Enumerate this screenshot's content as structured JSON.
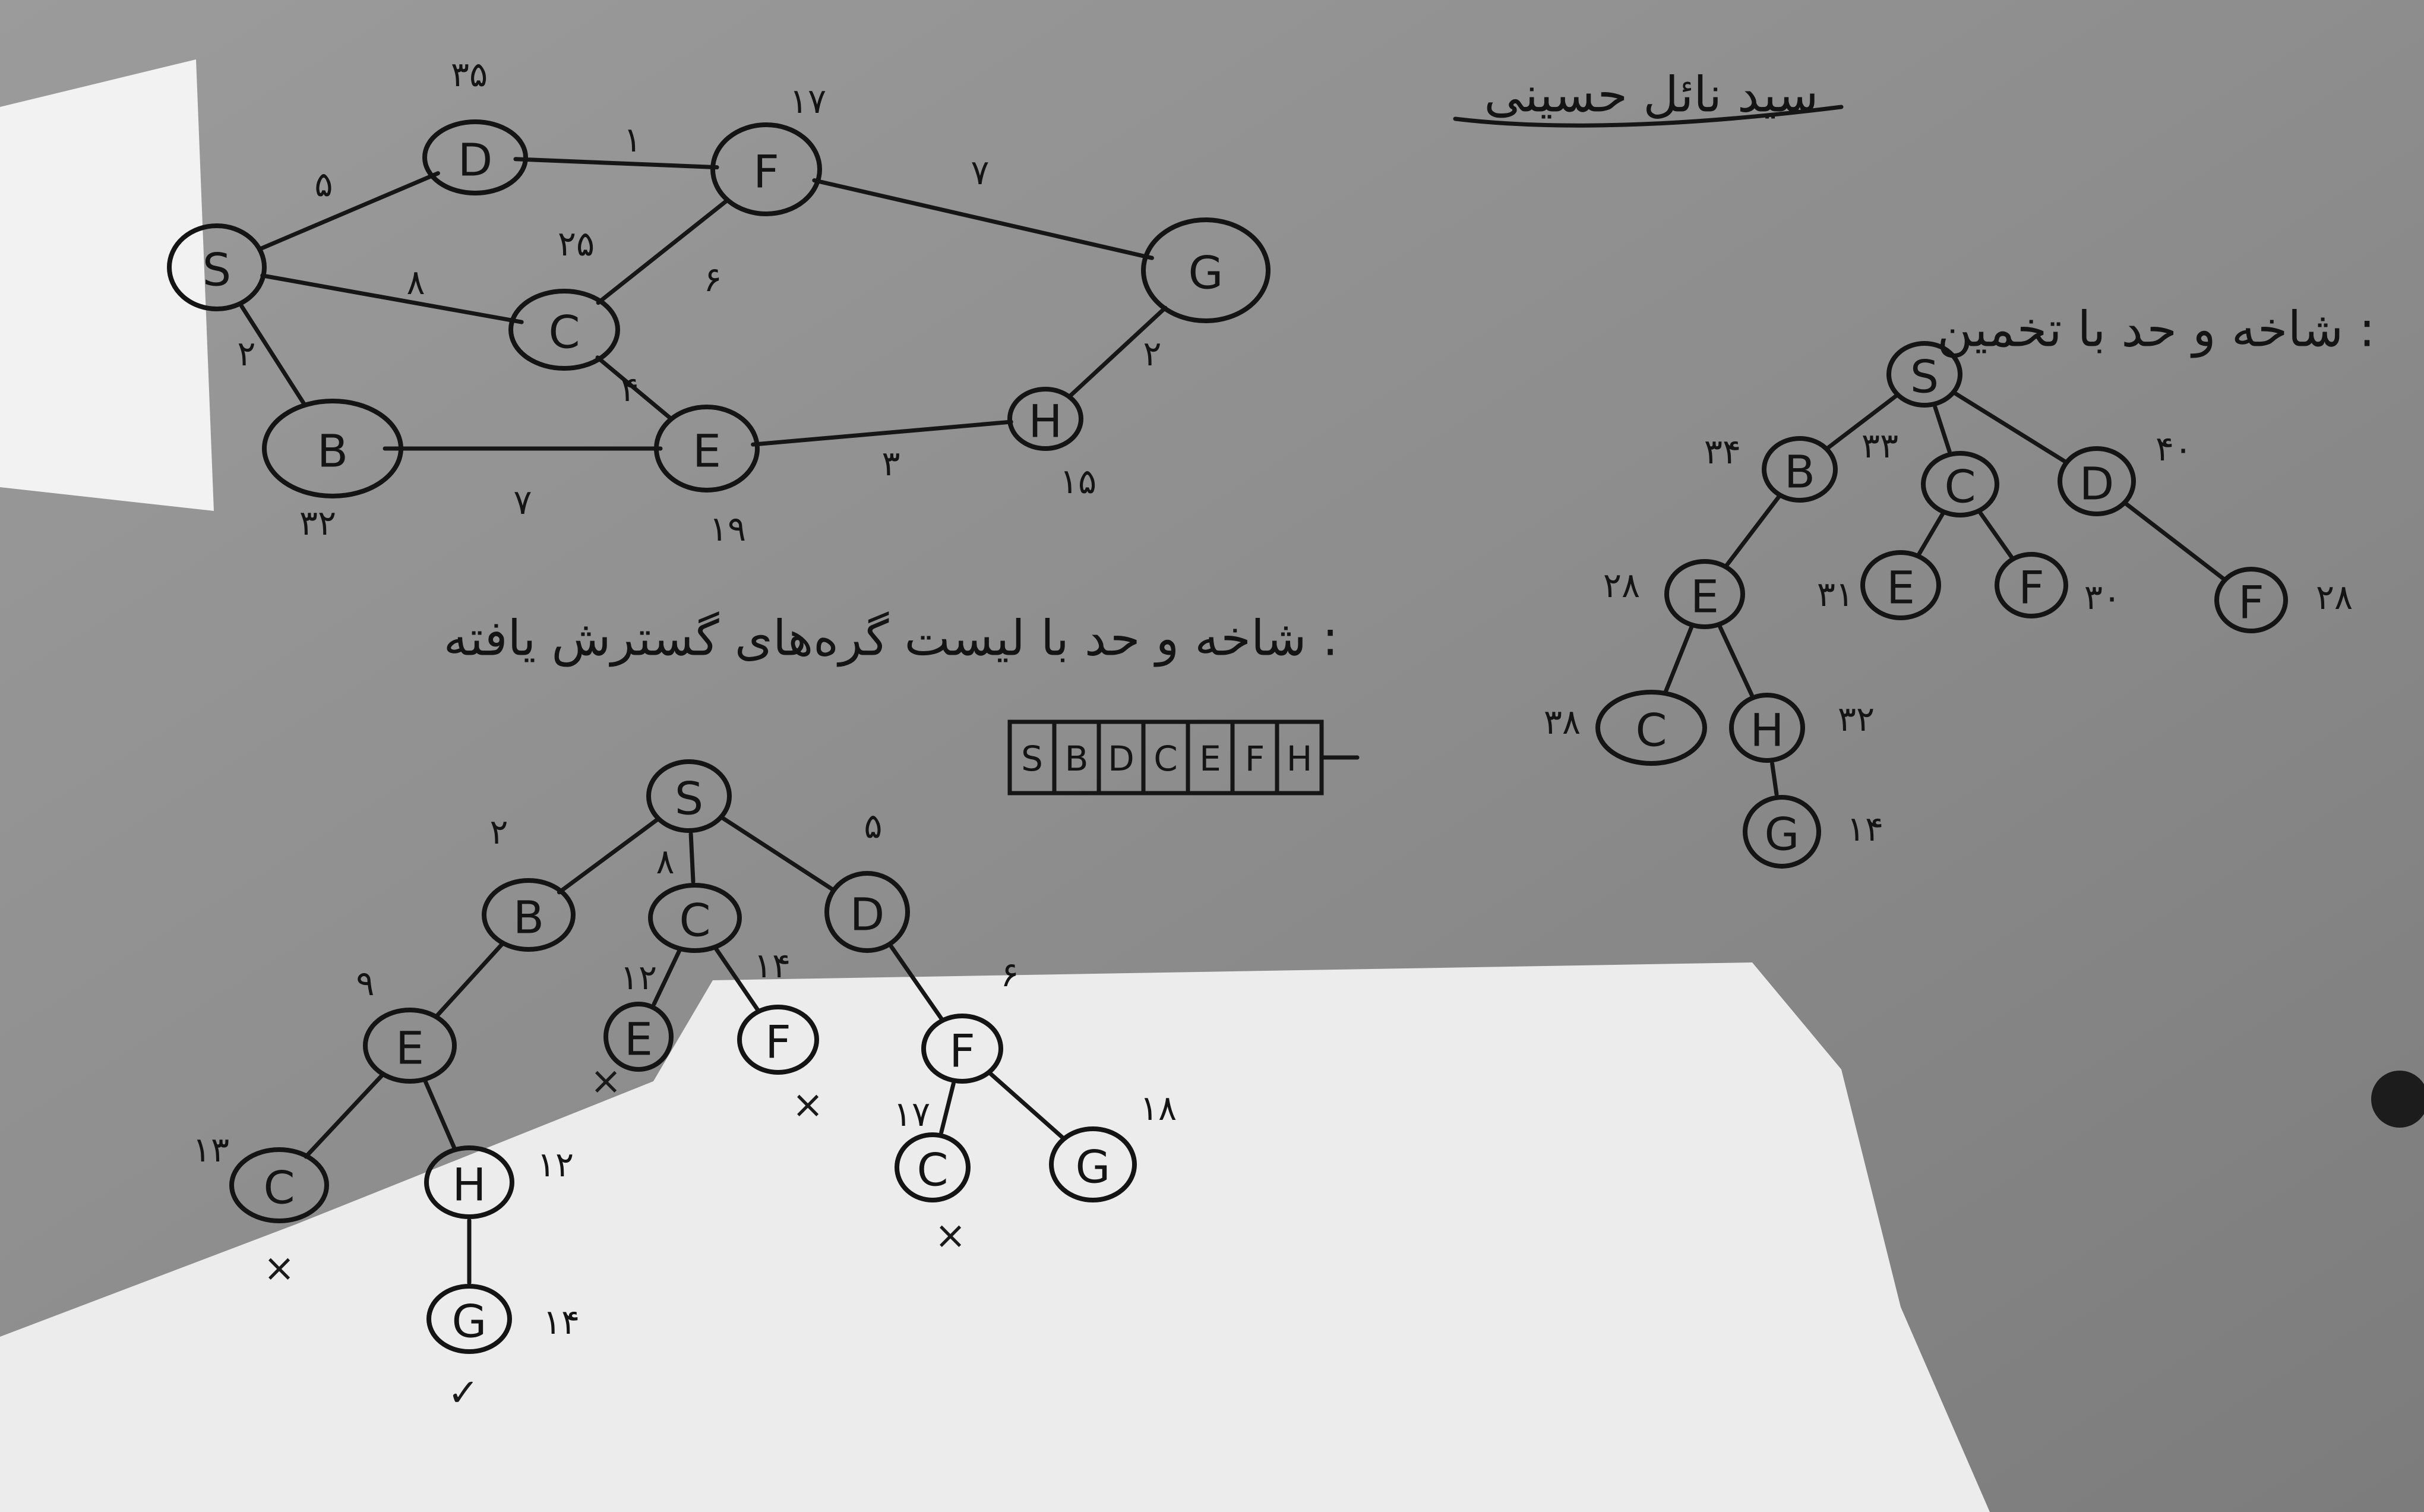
{
  "author_name": "سید نائل حسینی",
  "graph": {
    "nodes": [
      {
        "id": "S",
        "label": "S",
        "heuristic": ""
      },
      {
        "id": "D",
        "label": "D",
        "heuristic": "۳۵"
      },
      {
        "id": "F",
        "label": "F",
        "heuristic": "۱۷"
      },
      {
        "id": "G",
        "label": "G",
        "heuristic": ""
      },
      {
        "id": "C",
        "label": "C",
        "heuristic": "۲۵"
      },
      {
        "id": "B",
        "label": "B",
        "heuristic": "۳۲"
      },
      {
        "id": "E",
        "label": "E",
        "heuristic": "۱۹"
      },
      {
        "id": "H",
        "label": "H",
        "heuristic": "۱۵"
      }
    ],
    "edges": [
      {
        "from": "S",
        "to": "D",
        "weight": "۵"
      },
      {
        "from": "D",
        "to": "F",
        "weight": "۱"
      },
      {
        "from": "F",
        "to": "G",
        "weight": "۷"
      },
      {
        "from": "S",
        "to": "C",
        "weight": "۸"
      },
      {
        "from": "F",
        "to": "C",
        "weight": "۶"
      },
      {
        "from": "S",
        "to": "B",
        "weight": "۲"
      },
      {
        "from": "C",
        "to": "E",
        "weight": "۴"
      },
      {
        "from": "B",
        "to": "E",
        "weight": "۷"
      },
      {
        "from": "E",
        "to": "H",
        "weight": "۳"
      },
      {
        "from": "H",
        "to": "G",
        "weight": "۲"
      }
    ]
  },
  "greedy_tree": {
    "heading": "شاخه و حد با تخمین :",
    "nodes": [
      {
        "id": "S",
        "label": "S",
        "value": ""
      },
      {
        "id": "B",
        "label": "B",
        "value": "۳۴"
      },
      {
        "id": "C",
        "label": "C",
        "value": "۳۳"
      },
      {
        "id": "D",
        "label": "D",
        "value": "۴۰"
      },
      {
        "id": "E1",
        "label": "E",
        "value": "۲۸"
      },
      {
        "id": "E2",
        "label": "E",
        "value": "۳۱"
      },
      {
        "id": "F1",
        "label": "F",
        "value": "۳۰"
      },
      {
        "id": "F2",
        "label": "F",
        "value": "۲۸"
      },
      {
        "id": "C2",
        "label": "C",
        "value": "۳۸"
      },
      {
        "id": "H",
        "label": "H",
        "value": "۳۲"
      },
      {
        "id": "G",
        "label": "G",
        "value": "۱۴"
      }
    ]
  },
  "bb_tree": {
    "heading": "شاخه و حد با لیست گره‌های گسترش یافته :",
    "nodes": [
      {
        "id": "S",
        "label": "S",
        "value": "",
        "mark": ""
      },
      {
        "id": "B",
        "label": "B",
        "value": "۲",
        "mark": ""
      },
      {
        "id": "C",
        "label": "C",
        "value": "۸",
        "mark": ""
      },
      {
        "id": "D",
        "label": "D",
        "value": "۵",
        "mark": ""
      },
      {
        "id": "E",
        "label": "E",
        "value": "۹",
        "mark": ""
      },
      {
        "id": "E2",
        "label": "E",
        "value": "۱۲",
        "mark": "×"
      },
      {
        "id": "F2",
        "label": "F",
        "value": "۱۴",
        "mark": "×"
      },
      {
        "id": "F",
        "label": "F",
        "value": "۶",
        "mark": ""
      },
      {
        "id": "C3",
        "label": "C",
        "value": "۱۳",
        "mark": "×"
      },
      {
        "id": "H",
        "label": "H",
        "value": "۱۲",
        "mark": ""
      },
      {
        "id": "C4",
        "label": "C",
        "value": "۱۷",
        "mark": "×"
      },
      {
        "id": "G2",
        "label": "G",
        "value": "۱۸",
        "mark": ""
      },
      {
        "id": "G",
        "label": "G",
        "value": "۱۴",
        "mark": "✓"
      }
    ]
  },
  "expanded_list": [
    "S",
    "B",
    "D",
    "C",
    "E",
    "F",
    "H"
  ]
}
